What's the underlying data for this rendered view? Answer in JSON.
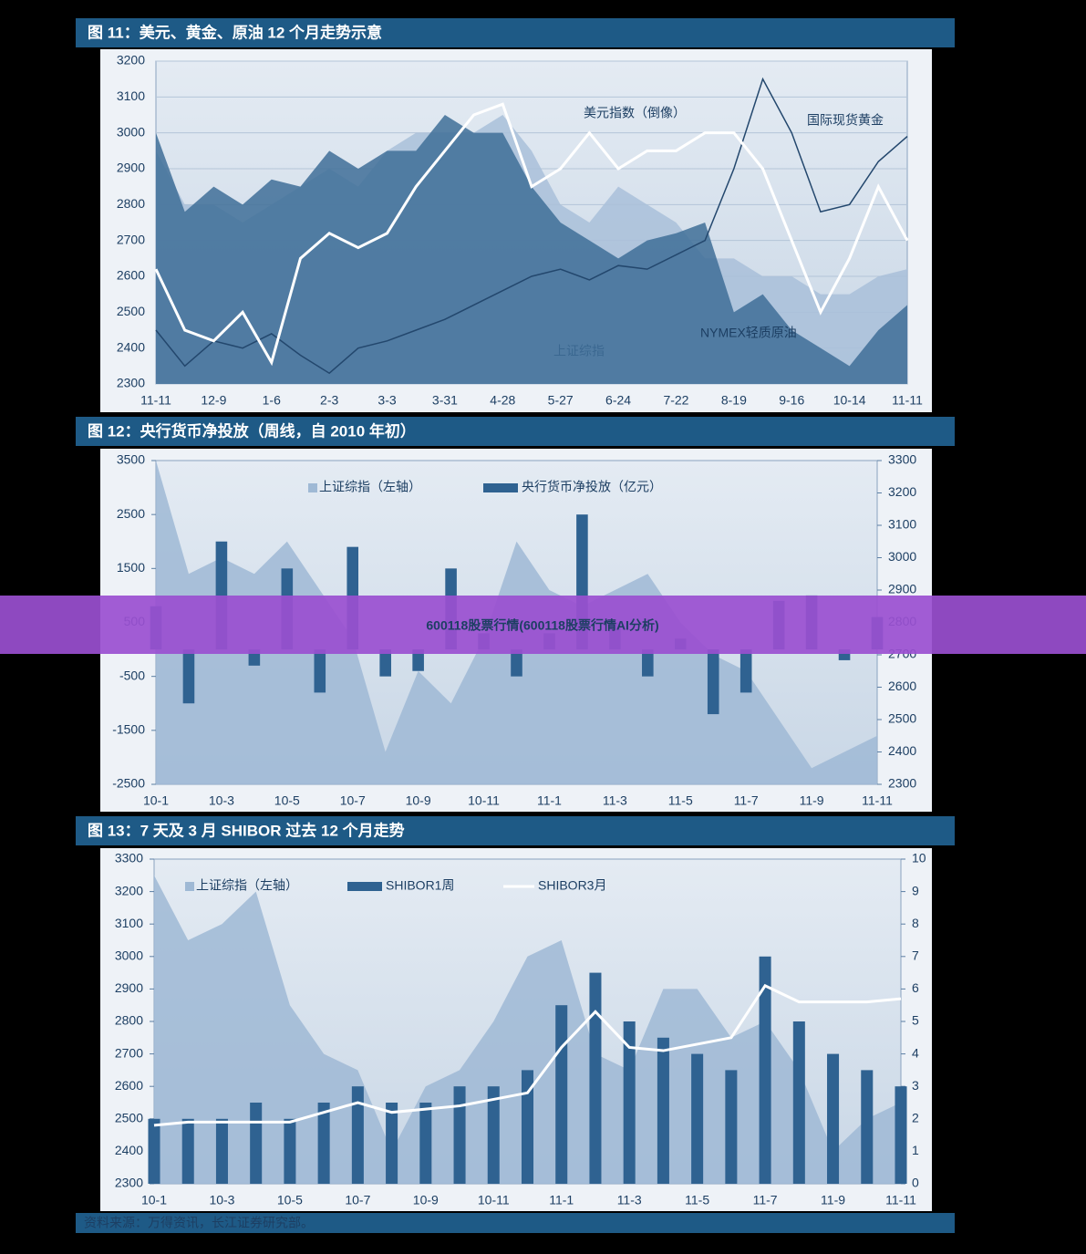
{
  "chart_data": [
    {
      "type": "line",
      "title": "图 11：美元、黄金、原油 12 个月走势示意",
      "categories": [
        "11-11",
        null,
        "12-9",
        null,
        "1-6",
        null,
        "2-3",
        null,
        "3-3",
        null,
        "3-31",
        null,
        "4-28",
        null,
        "5-27",
        null,
        "6-24",
        null,
        "7-22",
        null,
        "8-19",
        null,
        "9-16",
        null,
        "10-14",
        null,
        "11-11"
      ],
      "ylim": [
        2300,
        3200
      ],
      "yticks": [
        2300,
        2400,
        2500,
        2600,
        2700,
        2800,
        2900,
        3000,
        3100,
        3200
      ],
      "grid": true,
      "legend": false,
      "series": [
        {
          "name": "上证综指",
          "type": "area",
          "color": "#a9c0d9",
          "values": [
            2950,
            2800,
            2800,
            2750,
            2800,
            2850,
            2900,
            2850,
            2950,
            3000,
            3000,
            3000,
            3050,
            2950,
            2800,
            2750,
            2850,
            2800,
            2750,
            2650,
            2650,
            2600,
            2600,
            2550,
            2550,
            2600,
            2620
          ]
        },
        {
          "name": "NYMEX轻质原油",
          "type": "area",
          "color": "#3f6e98",
          "values": [
            3000,
            2780,
            2850,
            2800,
            2870,
            2850,
            2950,
            2900,
            2950,
            2950,
            3050,
            3000,
            3000,
            2850,
            2750,
            2700,
            2650,
            2700,
            2720,
            2750,
            2500,
            2550,
            2450,
            2400,
            2350,
            2450,
            2520
          ]
        },
        {
          "name": "国际现货黄金",
          "type": "line",
          "color": "#23476d",
          "values": [
            2450,
            2350,
            2420,
            2400,
            2440,
            2380,
            2330,
            2400,
            2420,
            2450,
            2480,
            2520,
            2560,
            2600,
            2620,
            2590,
            2630,
            2620,
            2660,
            2700,
            2900,
            3150,
            3000,
            2780,
            2800,
            2920,
            2990
          ]
        },
        {
          "name": "美元指数（倒像）",
          "type": "line",
          "color": "#ffffff",
          "values": [
            2620,
            2450,
            2420,
            2500,
            2360,
            2650,
            2720,
            2680,
            2720,
            2850,
            2950,
            3050,
            3080,
            2850,
            2900,
            3000,
            2900,
            2950,
            2950,
            3000,
            3000,
            2900,
            2700,
            2500,
            2650,
            2850,
            2700
          ]
        }
      ]
    },
    {
      "type": "bar",
      "title": "图 12：央行货币净投放（周线，自 2010 年初）",
      "categories": [
        "10-1",
        null,
        "10-3",
        null,
        "10-5",
        null,
        "10-7",
        null,
        "10-9",
        null,
        "10-11",
        null,
        "11-1",
        null,
        "11-3",
        null,
        "11-5",
        null,
        "11-7",
        null,
        "11-9",
        null,
        "11-11"
      ],
      "ylim": [
        -2500,
        3500
      ],
      "yticks": [
        -2500,
        -1500,
        -500,
        500,
        1500,
        2500,
        3500
      ],
      "y2lim": [
        2300,
        3300
      ],
      "y2ticks": [
        2300,
        2400,
        2500,
        2600,
        2700,
        2800,
        2900,
        3000,
        3100,
        3200,
        3300
      ],
      "grid": false,
      "legend": true,
      "series": [
        {
          "name": "上证综指（左轴）",
          "type": "area",
          "axis": "y2",
          "color": "#9fb9d5",
          "values": [
            3300,
            2950,
            3000,
            2950,
            3050,
            2900,
            2750,
            2400,
            2650,
            2550,
            2750,
            3050,
            2900,
            2850,
            2900,
            2950,
            2800,
            2700,
            2650,
            2500,
            2350,
            2400,
            2450
          ]
        },
        {
          "name": "央行货币净投放（亿元）",
          "type": "bar",
          "color": "#2f6291",
          "values": [
            800,
            -1000,
            2000,
            -300,
            1500,
            -800,
            1900,
            -500,
            -400,
            1500,
            300,
            -500,
            300,
            2500,
            500,
            -500,
            200,
            -1200,
            -800,
            900,
            1000,
            -200,
            600
          ]
        }
      ]
    },
    {
      "type": "bar",
      "title": "图 13：7 天及 3 月 SHIBOR 过去 12 个月走势",
      "categories": [
        "10-1",
        null,
        "10-3",
        null,
        "10-5",
        null,
        "10-7",
        null,
        "10-9",
        null,
        "10-11",
        null,
        "11-1",
        null,
        "11-3",
        null,
        "11-5",
        null,
        "11-7",
        null,
        "11-9",
        null,
        "11-11"
      ],
      "ylim": [
        2300,
        3300
      ],
      "yticks": [
        2300,
        2400,
        2500,
        2600,
        2700,
        2800,
        2900,
        3000,
        3100,
        3200,
        3300
      ],
      "y2lim": [
        0,
        10
      ],
      "y2ticks": [
        0,
        1,
        2,
        3,
        4,
        5,
        6,
        7,
        8,
        9,
        10
      ],
      "grid": false,
      "legend": true,
      "series": [
        {
          "name": "上证综指（左轴）",
          "type": "area",
          "color": "#9fb9d5",
          "values": [
            3250,
            3050,
            3100,
            3200,
            2850,
            2700,
            2650,
            2400,
            2600,
            2650,
            2800,
            3000,
            3050,
            2700,
            2650,
            2900,
            2900,
            2750,
            2800,
            2650,
            2400,
            2500,
            2550
          ]
        },
        {
          "name": "SHIBOR1周",
          "type": "bar",
          "axis": "y2",
          "color": "#2f6291",
          "values": [
            2,
            2,
            2,
            2.5,
            2,
            2.5,
            3,
            2.5,
            2.5,
            3,
            3,
            3.5,
            5.5,
            6.5,
            5,
            4.5,
            4,
            3.5,
            7,
            5,
            4,
            3.5,
            3
          ]
        },
        {
          "name": "SHIBOR3月",
          "type": "line",
          "axis": "y2",
          "color": "#ffffff",
          "values": [
            1.8,
            1.9,
            1.9,
            1.9,
            1.9,
            2.2,
            2.5,
            2.2,
            2.3,
            2.4,
            2.6,
            2.8,
            4.2,
            5.3,
            4.2,
            4.1,
            4.3,
            4.5,
            6.1,
            5.6,
            5.6,
            5.6,
            5.7
          ]
        }
      ]
    }
  ],
  "banner": "600118股票行情(600118股票行情AI分析)",
  "source": "资料来源：万得资讯，长江证券研究部。"
}
